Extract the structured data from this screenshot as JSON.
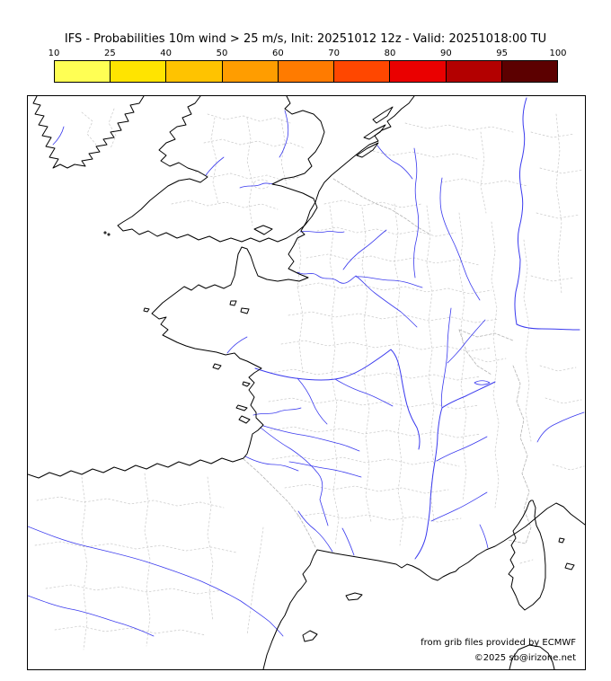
{
  "title": "IFS - Probabilities 10m wind > 25 m/s, Init: 20251012 12z - Valid: 20251018:00 TU",
  "colorbar": {
    "ticks": [
      "10",
      "25",
      "40",
      "50",
      "60",
      "70",
      "80",
      "90",
      "95",
      "100"
    ],
    "segment_colors": [
      "#ffff54",
      "#ffe400",
      "#ffc300",
      "#ff9d00",
      "#ff7b00",
      "#ff4700",
      "#ea0000",
      "#b30000",
      "#5c0000"
    ]
  },
  "map": {
    "coastline_color": "#000000",
    "river_color": "#3a3aee",
    "boundary_color": "#c8c8c8",
    "credit_line1": "from grib files provided by ECMWF",
    "credit_line2": "©2025 sb@irizone.net"
  }
}
